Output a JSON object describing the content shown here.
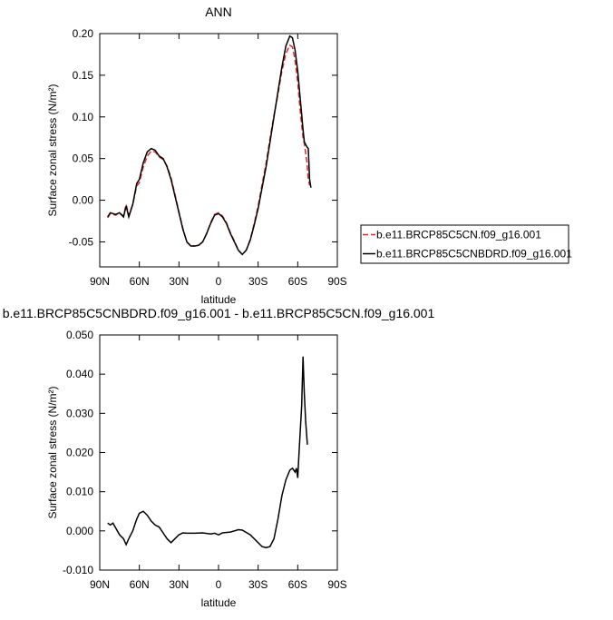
{
  "chart_data": [
    {
      "type": "line",
      "title": "ANN",
      "xlabel": "latitude",
      "ylabel": "Surface zonal stress (N/m²)",
      "xlim": [
        90,
        -90
      ],
      "xticks": [
        {
          "value": 90,
          "label": "90N"
        },
        {
          "value": 60,
          "label": "60N"
        },
        {
          "value": 30,
          "label": "30N"
        },
        0,
        {
          "value": -30,
          "label": "30S"
        },
        {
          "value": -60,
          "label": "60S"
        },
        {
          "value": -90,
          "label": "90S"
        }
      ],
      "ylim": [
        -0.08,
        0.2
      ],
      "yticks": [
        -0.05,
        {
          "value": 0,
          "label": "0.00"
        },
        0.05,
        {
          "value": 0.1,
          "label": "0.10"
        },
        0.15,
        {
          "value": 0.2,
          "label": "0.20"
        }
      ],
      "legend": "right",
      "x": [
        84,
        82,
        78,
        75,
        72,
        70,
        68,
        65,
        62,
        60,
        57,
        54,
        51,
        48,
        45,
        42,
        39,
        36,
        33,
        30,
        27,
        24,
        21,
        18,
        15,
        12,
        9,
        6,
        3,
        0,
        -3,
        -6,
        -9,
        -12,
        -15,
        -18,
        -21,
        -24,
        -27,
        -30,
        -33,
        -36,
        -39,
        -42,
        -45,
        -48,
        -51,
        -54,
        -56,
        -58,
        -60,
        -62,
        -64,
        -65,
        -67,
        -68,
        -69,
        -70
      ],
      "series": [
        {
          "name": "b.e11.BRCP85C5CN.f09_g16.001",
          "color": "#e8262b",
          "style": "dashed",
          "values": [
            -0.021,
            -0.016,
            -0.018,
            -0.015,
            -0.019,
            -0.005,
            -0.018,
            -0.005,
            0.017,
            0.021,
            0.04,
            0.053,
            0.059,
            0.058,
            0.052,
            0.049,
            0.041,
            0.027,
            0.007,
            -0.014,
            -0.034,
            -0.05,
            -0.055,
            -0.055,
            -0.054,
            -0.05,
            -0.04,
            -0.027,
            -0.017,
            -0.015,
            -0.019,
            -0.027,
            -0.039,
            -0.049,
            -0.06,
            -0.065,
            -0.06,
            -0.047,
            -0.028,
            -0.007,
            0.019,
            0.044,
            0.074,
            0.102,
            0.127,
            0.155,
            0.176,
            0.186,
            0.184,
            0.168,
            0.142,
            0.105,
            0.075,
            0.068,
            0.045,
            0.025,
            0.018,
            null
          ]
        },
        {
          "name": "b.e11.BRCP85C5CNBDRD.f09_g16.001",
          "color": "#000000",
          "style": "solid",
          "values": [
            -0.02,
            -0.015,
            -0.017,
            -0.015,
            -0.02,
            -0.007,
            -0.02,
            -0.005,
            0.02,
            0.025,
            0.045,
            0.058,
            0.062,
            0.06,
            0.053,
            0.05,
            0.04,
            0.025,
            0.005,
            -0.015,
            -0.035,
            -0.05,
            -0.055,
            -0.055,
            -0.054,
            -0.05,
            -0.04,
            -0.028,
            -0.018,
            -0.016,
            -0.02,
            -0.028,
            -0.04,
            -0.05,
            -0.06,
            -0.065,
            -0.06,
            -0.048,
            -0.03,
            -0.01,
            0.015,
            0.04,
            0.07,
            0.1,
            0.13,
            0.16,
            0.185,
            0.197,
            0.195,
            0.18,
            0.155,
            0.12,
            0.085,
            0.07,
            0.064,
            0.062,
            0.025,
            0.015
          ]
        }
      ]
    },
    {
      "type": "line",
      "title": "b.e11.BRCP85C5CNBDRD.f09_g16.001 - b.e11.BRCP85C5CN.f09_g16.001",
      "xlabel": "latitude",
      "ylabel": "Surface zonal stress (N/m²)",
      "xlim": [
        90,
        -90
      ],
      "xticks": [
        {
          "value": 90,
          "label": "90N"
        },
        {
          "value": 60,
          "label": "60N"
        },
        {
          "value": 30,
          "label": "30N"
        },
        0,
        {
          "value": -30,
          "label": "30S"
        },
        {
          "value": -60,
          "label": "60S"
        },
        {
          "value": -90,
          "label": "90S"
        }
      ],
      "ylim": [
        -0.01,
        0.05
      ],
      "yticks": [
        {
          "value": -0.01,
          "label": "-0.010"
        },
        {
          "value": 0,
          "label": "0.000"
        },
        {
          "value": 0.01,
          "label": "0.010"
        },
        {
          "value": 0.02,
          "label": "0.020"
        },
        {
          "value": 0.03,
          "label": "0.030"
        },
        {
          "value": 0.04,
          "label": "0.040"
        },
        {
          "value": 0.05,
          "label": "0.050"
        }
      ],
      "color": "#000000",
      "x": [
        84,
        82,
        80,
        78,
        75,
        72,
        70,
        68,
        65,
        62,
        60,
        57,
        54,
        51,
        48,
        45,
        42,
        39,
        36,
        33,
        30,
        27,
        24,
        18,
        12,
        6,
        3,
        0,
        -3,
        -9,
        -15,
        -18,
        -24,
        -30,
        -33,
        -36,
        -39,
        -42,
        -45,
        -48,
        -51,
        -54,
        -56,
        -58,
        -59,
        -60,
        -61,
        -63,
        -64,
        -65,
        -66,
        -67.3
      ],
      "values": [
        0.002,
        0.0015,
        0.002,
        0.0008,
        -0.001,
        -0.002,
        -0.0035,
        -0.002,
        0.0,
        0.003,
        0.0045,
        0.005,
        0.004,
        0.0025,
        0.0015,
        0.001,
        -0.0005,
        -0.002,
        -0.003,
        -0.002,
        -0.001,
        -0.0005,
        -0.0006,
        -0.0006,
        -0.0005,
        -0.0008,
        -0.0006,
        -0.001,
        -0.0005,
        -0.0003,
        0.0003,
        0.0002,
        -0.001,
        -0.003,
        -0.004,
        -0.0043,
        -0.004,
        -0.002,
        0.003,
        0.009,
        0.013,
        0.0155,
        0.016,
        0.015,
        0.016,
        0.0135,
        0.02,
        0.032,
        0.0445,
        0.035,
        0.028,
        0.022
      ]
    }
  ]
}
